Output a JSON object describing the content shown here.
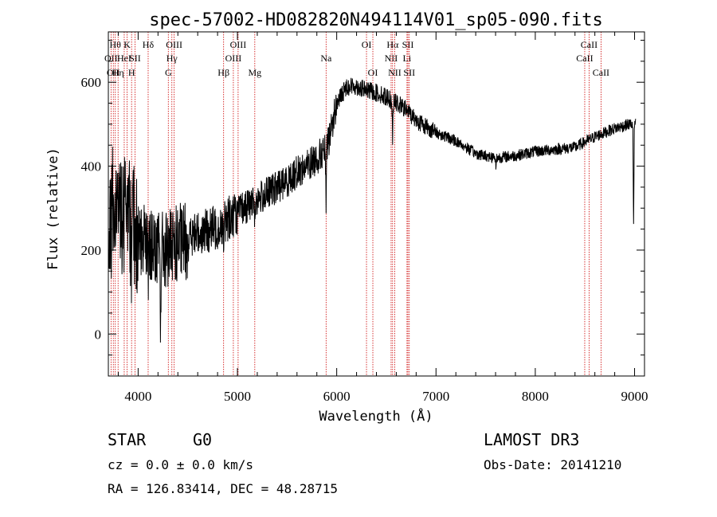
{
  "chart_data": {
    "type": "line",
    "title": "spec-57002-HD082820N494114V01_sp05-090.fits",
    "xlabel": "Wavelength (Å)",
    "ylabel": "Flux (relative)",
    "xlim": [
      3700,
      9100
    ],
    "ylim": [
      -100,
      720
    ],
    "x_ticks": [
      4000,
      5000,
      6000,
      7000,
      8000,
      9000
    ],
    "y_ticks": [
      0,
      200,
      400,
      600
    ],
    "spectrum_anchors": [
      [
        3700,
        180
      ],
      [
        3750,
        350
      ],
      [
        3800,
        300
      ],
      [
        3900,
        270
      ],
      [
        4000,
        240
      ],
      [
        4100,
        220
      ],
      [
        4200,
        200
      ],
      [
        4300,
        200
      ],
      [
        4400,
        215
      ],
      [
        4500,
        225
      ],
      [
        4600,
        240
      ],
      [
        4700,
        245
      ],
      [
        4800,
        255
      ],
      [
        4900,
        275
      ],
      [
        5000,
        290
      ],
      [
        5100,
        305
      ],
      [
        5200,
        320
      ],
      [
        5300,
        335
      ],
      [
        5400,
        350
      ],
      [
        5500,
        365
      ],
      [
        5600,
        385
      ],
      [
        5700,
        400
      ],
      [
        5800,
        420
      ],
      [
        5900,
        440
      ],
      [
        6000,
        550
      ],
      [
        6100,
        590
      ],
      [
        6200,
        590
      ],
      [
        6300,
        580
      ],
      [
        6400,
        575
      ],
      [
        6500,
        565
      ],
      [
        6600,
        550
      ],
      [
        6700,
        535
      ],
      [
        6800,
        510
      ],
      [
        6900,
        495
      ],
      [
        7000,
        480
      ],
      [
        7200,
        460
      ],
      [
        7400,
        430
      ],
      [
        7600,
        420
      ],
      [
        7800,
        425
      ],
      [
        8000,
        435
      ],
      [
        8200,
        440
      ],
      [
        8400,
        445
      ],
      [
        8600,
        470
      ],
      [
        8800,
        490
      ],
      [
        8950,
        500
      ],
      [
        9000,
        500
      ]
    ],
    "absorption_features": [
      {
        "x": 3934,
        "depth": 120
      },
      {
        "x": 3968,
        "depth": 110
      },
      {
        "x": 4101,
        "depth": 60
      },
      {
        "x": 4226,
        "depth": 180
      },
      {
        "x": 4340,
        "depth": 70
      },
      {
        "x": 4861,
        "depth": 80
      },
      {
        "x": 5175,
        "depth": 40
      },
      {
        "x": 5893,
        "depth": 140
      },
      {
        "x": 6563,
        "depth": 90
      },
      {
        "x": 7605,
        "depth": 25
      },
      {
        "x": 8990,
        "depth": 250
      }
    ],
    "line_markers": [
      {
        "x": 3727,
        "label": "OII",
        "row": 1
      },
      {
        "x": 3750,
        "label": "OII",
        "row": 2
      },
      {
        "x": 3770,
        "label": "Hθ",
        "row": 0
      },
      {
        "x": 3798,
        "label": "Hη",
        "row": 2
      },
      {
        "x": 3860,
        "label": "HeI",
        "row": 1
      },
      {
        "x": 3889,
        "label": "K",
        "row": 0
      },
      {
        "x": 3934,
        "label": "H",
        "row": 2
      },
      {
        "x": 3968,
        "label": "SII",
        "row": 1
      },
      {
        "x": 4101,
        "label": "Hδ",
        "row": 0
      },
      {
        "x": 4304,
        "label": "G",
        "row": 2
      },
      {
        "x": 4340,
        "label": "Hγ",
        "row": 1
      },
      {
        "x": 4363,
        "label": "OIII",
        "row": 0
      },
      {
        "x": 4861,
        "label": "Hβ",
        "row": 2
      },
      {
        "x": 4959,
        "label": "OIII",
        "row": 1
      },
      {
        "x": 5007,
        "label": "OIII",
        "row": 0
      },
      {
        "x": 5175,
        "label": "Mg",
        "row": 2
      },
      {
        "x": 5893,
        "label": "Na",
        "row": 1
      },
      {
        "x": 6300,
        "label": "OI",
        "row": 0
      },
      {
        "x": 6364,
        "label": "OI",
        "row": 2
      },
      {
        "x": 6548,
        "label": "NII",
        "row": 1
      },
      {
        "x": 6563,
        "label": "Hα",
        "row": 0
      },
      {
        "x": 6584,
        "label": "NII",
        "row": 2
      },
      {
        "x": 6708,
        "label": "Li",
        "row": 1
      },
      {
        "x": 6717,
        "label": "SII",
        "row": 0
      },
      {
        "x": 6731,
        "label": "SII",
        "row": 2
      },
      {
        "x": 8498,
        "label": "CaII",
        "row": 1
      },
      {
        "x": 8542,
        "label": "CaII",
        "row": 0
      },
      {
        "x": 8662,
        "label": "CaII",
        "row": 2
      }
    ],
    "line_marker_color": "#cc0000",
    "spectrum_color": "#000000"
  },
  "info": {
    "object_class": "STAR",
    "subclass": "G0",
    "survey": "LAMOST DR3",
    "redshift": "cz = 0.0 ± 0.0 km/s",
    "obs_date": "Obs-Date: 20141210",
    "coords": "RA = 126.83414, DEC =  48.28715"
  }
}
